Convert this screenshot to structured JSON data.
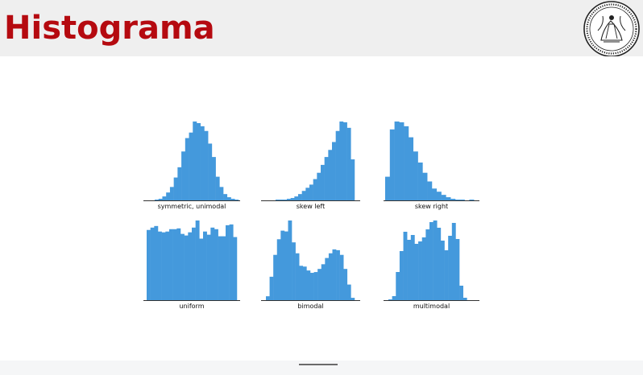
{
  "slide": {
    "title": "Histograma"
  },
  "colors": {
    "title": "#b50a10",
    "bars": "#4499dc",
    "header_bg": "#efefef"
  },
  "logo_icon": "university-seal-icon",
  "chart_data": [
    {
      "type": "bar",
      "xlabel": "symmetric, unimodal",
      "values": [
        1,
        2,
        5,
        10,
        17,
        29,
        42,
        62,
        79,
        86,
        100,
        98,
        94,
        88,
        72,
        55,
        30,
        17,
        8,
        4,
        2,
        1
      ]
    },
    {
      "type": "bar",
      "xlabel": "skew left",
      "values": [
        1,
        1,
        1,
        2,
        3,
        5,
        8,
        12,
        16,
        20,
        27,
        35,
        45,
        55,
        64,
        74,
        88,
        100,
        99,
        92,
        52
      ]
    },
    {
      "type": "bar",
      "xlabel": "skew right",
      "values": [
        30,
        90,
        100,
        99,
        94,
        80,
        62,
        48,
        35,
        24,
        15,
        11,
        7,
        4,
        2,
        1,
        1,
        0,
        1,
        0
      ]
    },
    {
      "type": "bar",
      "xlabel": "uniform",
      "values": [
        89,
        92,
        94,
        87,
        86,
        87,
        90,
        90,
        91,
        84,
        82,
        86,
        92,
        101,
        78,
        87,
        83,
        92,
        90,
        81,
        81,
        95,
        96,
        80
      ]
    },
    {
      "type": "bar",
      "xlabel": "bimodal",
      "values": [
        5,
        30,
        58,
        78,
        89,
        88,
        102,
        74,
        60,
        44,
        43,
        38,
        35,
        36,
        40,
        46,
        54,
        60,
        65,
        64,
        58,
        40,
        20,
        3
      ]
    },
    {
      "type": "bar",
      "xlabel": "multimodal",
      "values": [
        1,
        5,
        35,
        61,
        85,
        75,
        81,
        70,
        73,
        78,
        88,
        97,
        99,
        90,
        74,
        62,
        80,
        96,
        76,
        18,
        3,
        0
      ]
    }
  ]
}
